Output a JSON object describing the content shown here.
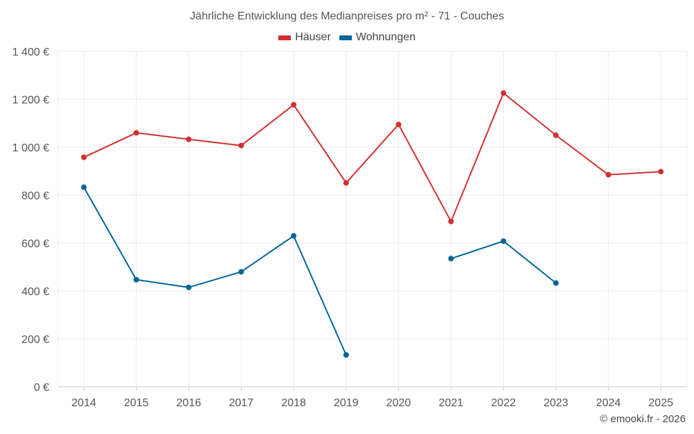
{
  "chart_data": {
    "type": "line",
    "title": "Jährliche Entwicklung des Medianpreises pro m² - 71 - Couches",
    "categories": [
      "2014",
      "2015",
      "2016",
      "2017",
      "2018",
      "2019",
      "2020",
      "2021",
      "2022",
      "2023",
      "2024",
      "2025"
    ],
    "series": [
      {
        "name": "Häuser",
        "color": "#d32f2f",
        "values": [
          958,
          1060,
          1033,
          1007,
          1177,
          851,
          1095,
          690,
          1226,
          1050,
          885,
          898
        ]
      },
      {
        "name": "Wohnungen",
        "color": "#006599",
        "values": [
          833,
          447,
          415,
          480,
          630,
          133,
          null,
          535,
          608,
          433,
          null,
          null
        ]
      }
    ],
    "ylim": [
      0,
      1400
    ],
    "yticks": [
      0,
      200,
      400,
      600,
      800,
      1000,
      1200,
      1400
    ],
    "ytick_labels": [
      "0 €",
      "200 €",
      "400 €",
      "600 €",
      "800 €",
      "1 000 €",
      "1 200 €",
      "1 400 €"
    ],
    "xlabel": "",
    "ylabel": "",
    "grid": true,
    "legend_position": "top-center"
  },
  "credit": "© emooki.fr - 2026"
}
